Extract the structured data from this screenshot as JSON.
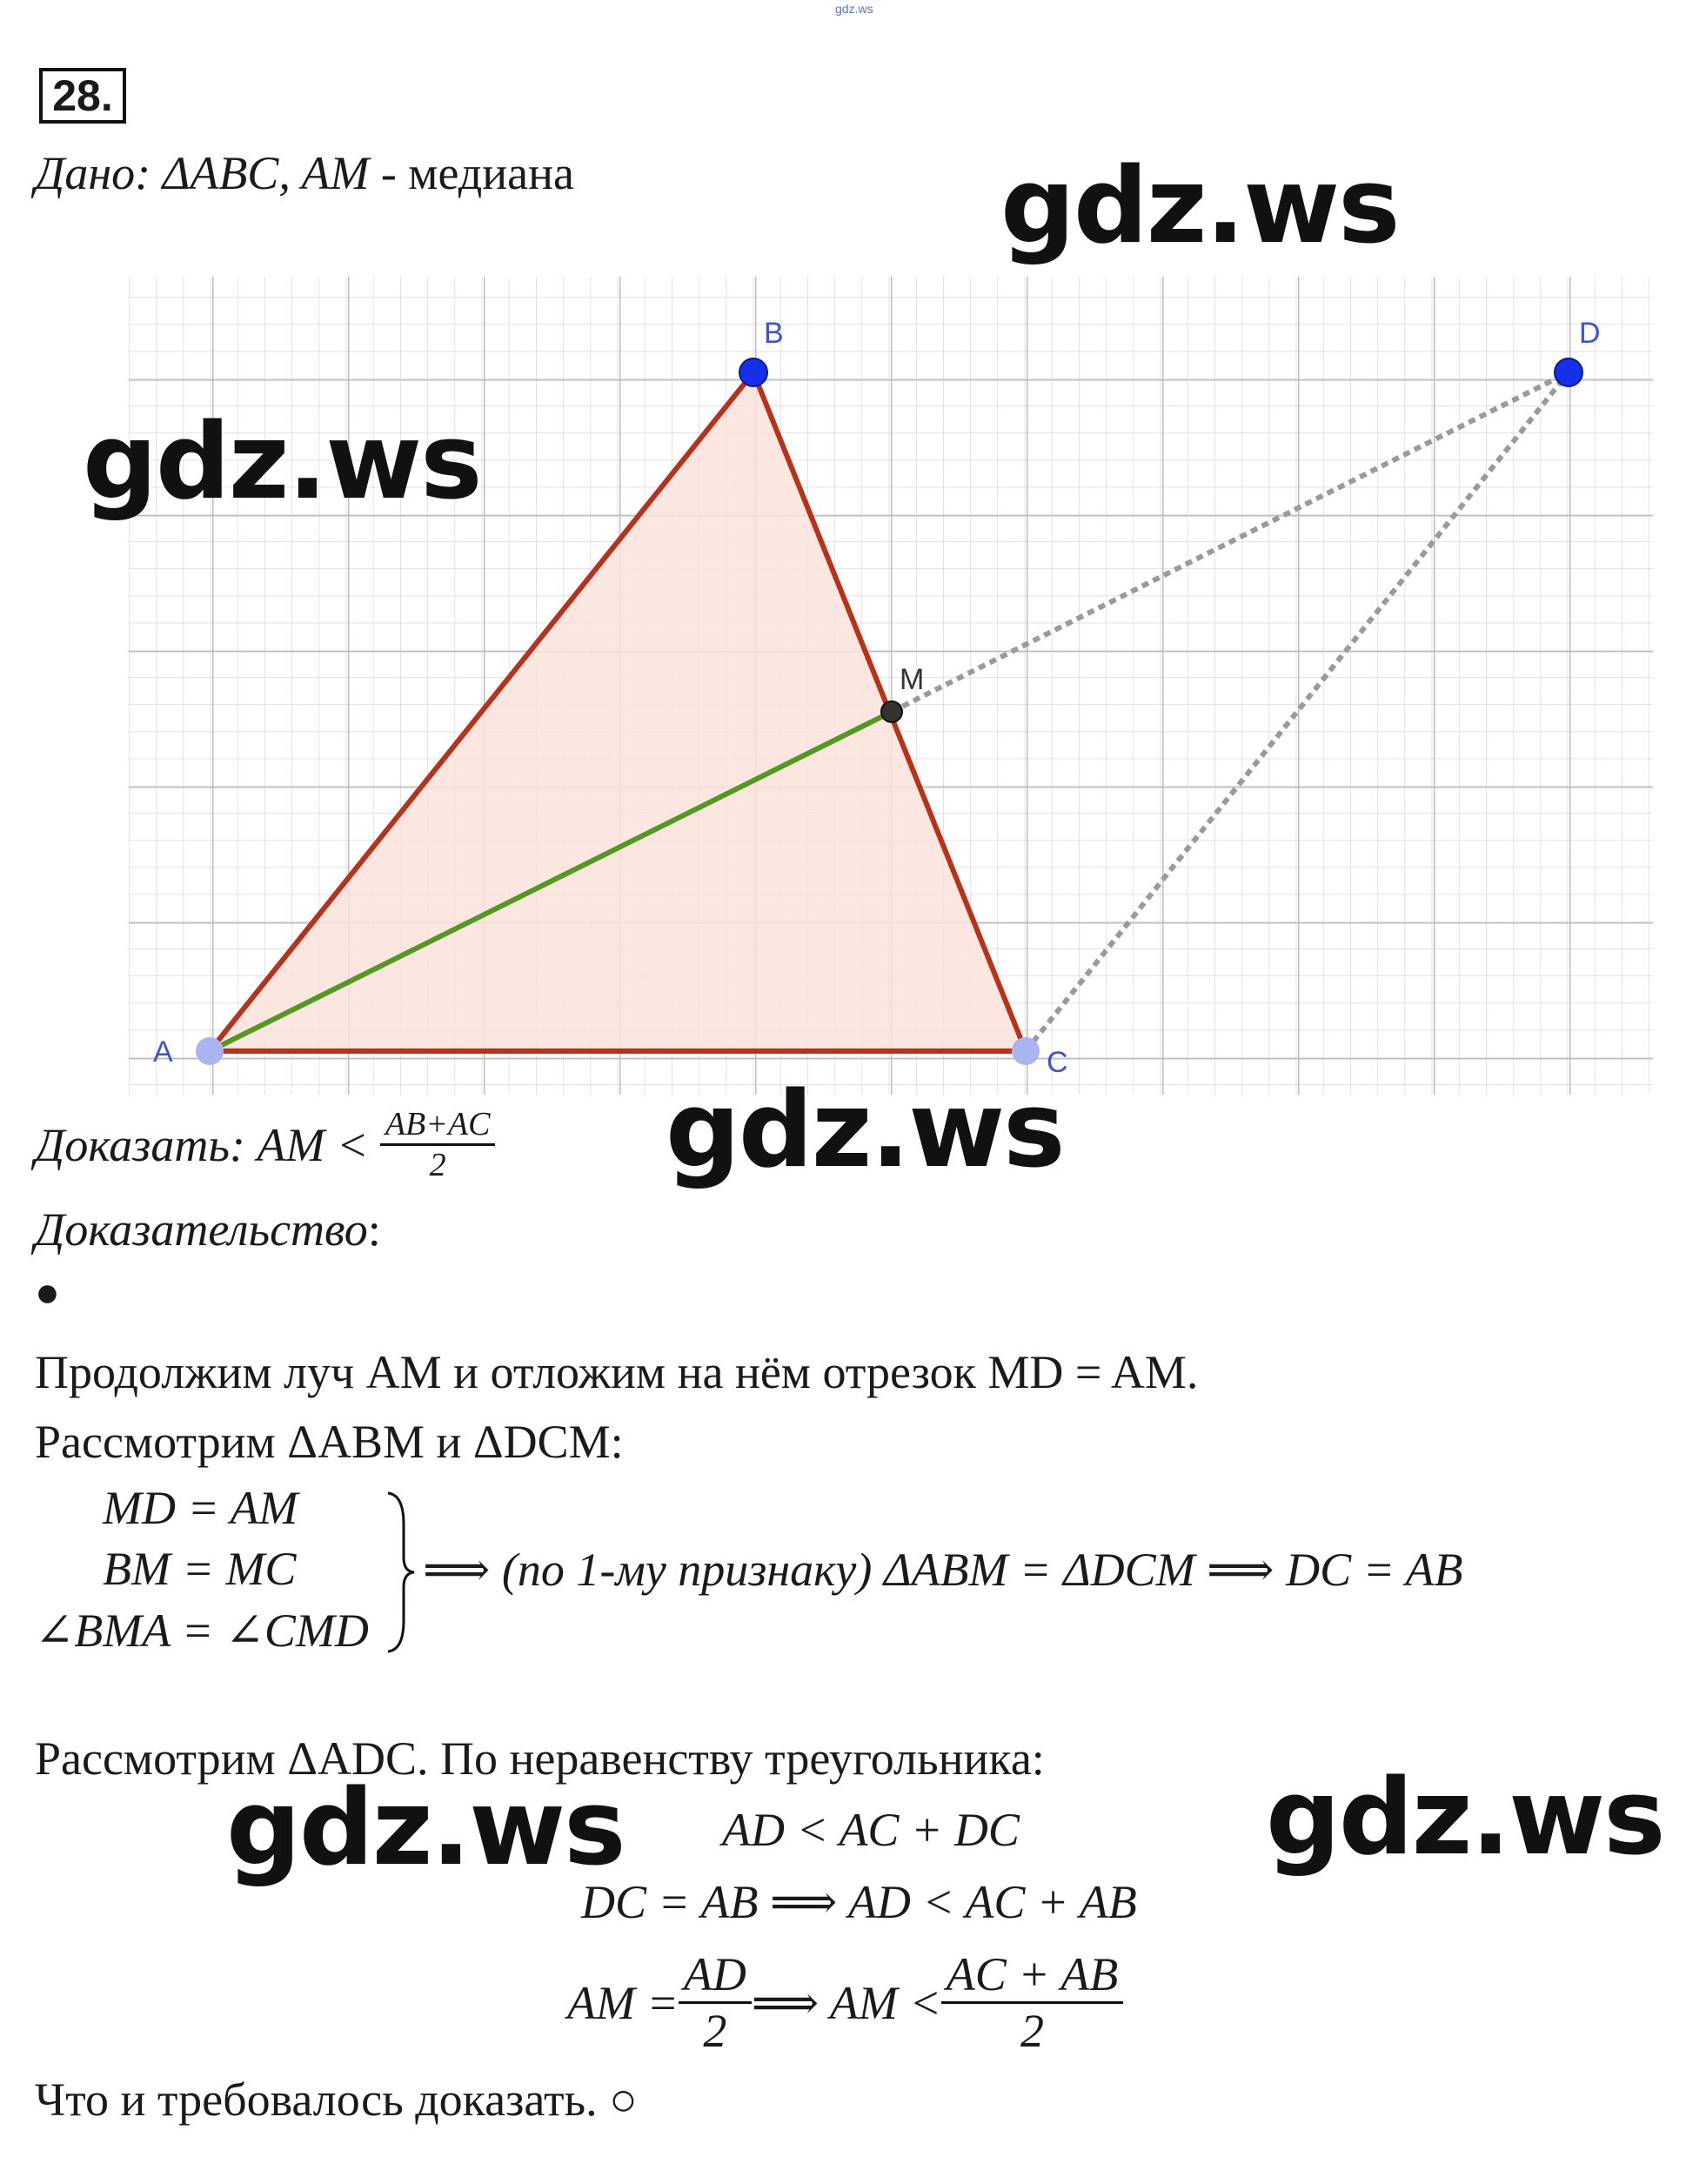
{
  "header": {
    "site_small": "gdz.ws",
    "problem_number": "28."
  },
  "given": {
    "label": "Дано",
    "text": ": ΔABC,  AM",
    "median": " - медиана"
  },
  "figure": {
    "points": {
      "A": "A",
      "B": "B",
      "C": "C",
      "D": "D",
      "M": "M"
    },
    "colors": {
      "triangle_fill": "#fbe2da",
      "triangle_edge": "#b8321a",
      "median": "#4f9a1f",
      "point": "#1430e8",
      "point_light": "#aab4f0",
      "grid": "#c9c9c9",
      "dashed": "#9a9a9a"
    }
  },
  "prove": {
    "label": "Доказать",
    "lhs": ": AM < ",
    "num": "AB+AC",
    "den": "2"
  },
  "proof": {
    "label": "Доказательство",
    "colon": ":",
    "bullet": "●",
    "line1": "Продолжим луч AM и отложим на нём отрезок MD = AM.",
    "line2": "Рассмотрим ΔABM и ΔDCM:",
    "sys": [
      "MD = AM",
      "BM = MC",
      "∠BMA = ∠CMD"
    ],
    "sys_result": "⟹ (по 1-му признаку) ΔABM =  ΔDCM ⟹ DC = AB",
    "line3": "Рассмотрим ΔADC. По неравенству треугольника:",
    "ineq1": "AD < AC + DC",
    "ineq2": "DC = AB ⟹ AD < AC + AB",
    "ineq3_lhs": "AM = ",
    "ineq3_num1": "AD",
    "ineq3_den1": "2",
    "ineq3_mid": " ⟹ AM < ",
    "ineq3_num2": "AC + AB",
    "ineq3_den2": "2",
    "end": "Что и требовалось доказать. ○"
  },
  "watermarks": [
    "gdz.ws",
    "gdz.ws",
    "gdz.ws",
    "gdz.ws",
    "gdz.ws"
  ]
}
